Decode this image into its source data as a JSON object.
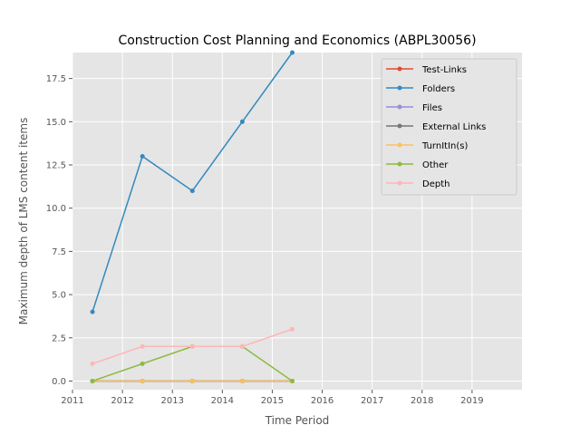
{
  "chart_data": {
    "type": "line",
    "title": "Construction Cost Planning and Economics (ABPL30056)",
    "xlabel": "Time Period",
    "ylabel": "Maximum depth of LMS content items",
    "xlim": [
      2011.0,
      2020.0
    ],
    "ylim": [
      -0.5,
      19.0
    ],
    "x_ticks": [
      "2011",
      "2012",
      "2013",
      "2014",
      "2015",
      "2016",
      "2017",
      "2018",
      "2019"
    ],
    "y_ticks": [
      "0.0",
      "2.5",
      "5.0",
      "7.5",
      "10.0",
      "12.5",
      "15.0",
      "17.5"
    ],
    "grid": true,
    "legend_position": "top-right",
    "x": [
      2011.4,
      2012.4,
      2013.4,
      2014.4,
      2015.4
    ],
    "series": [
      {
        "name": "Test-Links",
        "color": "#e24a33",
        "values": [
          0,
          0,
          0,
          0,
          0
        ]
      },
      {
        "name": "Folders",
        "color": "#348abd",
        "values": [
          4,
          13,
          11,
          15,
          19
        ]
      },
      {
        "name": "Files",
        "color": "#988ed5",
        "values": [
          0,
          0,
          0,
          0,
          0
        ]
      },
      {
        "name": "External Links",
        "color": "#777777",
        "values": [
          0,
          0,
          0,
          0,
          0
        ]
      },
      {
        "name": "TurnItIn(s)",
        "color": "#fbc15e",
        "values": [
          0,
          0,
          0,
          0,
          0
        ]
      },
      {
        "name": "Other",
        "color": "#8eba42",
        "values": [
          0,
          1,
          2,
          2,
          0
        ]
      },
      {
        "name": "Depth",
        "color": "#ffb5b8",
        "values": [
          1,
          2,
          2,
          2,
          3
        ]
      }
    ]
  }
}
